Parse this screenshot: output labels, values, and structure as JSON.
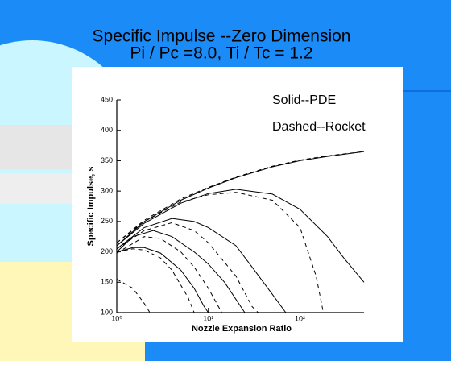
{
  "chart_data": {
    "type": "line",
    "title": "Specific Impulse --Zero Dimension",
    "subtitle": "Pi / Pc =8.0,  Ti / Tc = 1.2",
    "x_label": "Nozzle Expansion Ratio",
    "y_label": "Specific Impulse, s",
    "annotations": [
      "Solid--PDE",
      "Dashed--Rocket"
    ],
    "log_x": true,
    "xlim": [
      1,
      500
    ],
    "xticks": [
      {
        "value": 1,
        "label": "10⁰"
      },
      {
        "value": 10,
        "label": "10¹"
      },
      {
        "value": 100,
        "label": "10²"
      }
    ],
    "ylim": [
      100,
      450
    ],
    "yticks": [
      100,
      150,
      200,
      250,
      300,
      350,
      400,
      450
    ],
    "series": [
      {
        "color": "#000000",
        "dashed": false,
        "x": [
          1,
          2,
          5,
          10,
          20,
          50,
          100,
          200,
          500
        ],
        "values": [
          210,
          250,
          285,
          305,
          322,
          340,
          350,
          357,
          365
        ]
      },
      {
        "color": "#000000",
        "dashed": true,
        "x": [
          1,
          2,
          5,
          10,
          20,
          50,
          100,
          200,
          500
        ],
        "values": [
          215,
          252,
          287,
          306,
          323,
          341,
          351,
          358,
          365
        ]
      },
      {
        "color": "#000000",
        "dashed": false,
        "x": [
          1,
          2,
          5,
          10,
          20,
          50,
          100,
          200,
          300,
          500
        ],
        "values": [
          210,
          247,
          280,
          296,
          303,
          295,
          270,
          225,
          190,
          150
        ]
      },
      {
        "color": "#000000",
        "dashed": true,
        "x": [
          1,
          2,
          5,
          10,
          20,
          50,
          100,
          150,
          180
        ],
        "values": [
          215,
          250,
          282,
          294,
          298,
          285,
          240,
          160,
          100
        ]
      },
      {
        "color": "#000000",
        "dashed": false,
        "x": [
          1,
          2,
          4,
          7,
          10,
          20,
          30,
          50,
          70
        ],
        "values": [
          205,
          240,
          255,
          250,
          240,
          210,
          175,
          130,
          100
        ]
      },
      {
        "color": "#000000",
        "dashed": true,
        "x": [
          1,
          2,
          4,
          7,
          10,
          20,
          30,
          35
        ],
        "values": [
          205,
          235,
          248,
          235,
          215,
          160,
          110,
          100
        ]
      },
      {
        "color": "#000000",
        "dashed": false,
        "x": [
          1,
          1.5,
          2.5,
          4,
          7,
          10,
          15,
          25
        ],
        "values": [
          200,
          225,
          235,
          225,
          200,
          180,
          150,
          100
        ]
      },
      {
        "color": "#000000",
        "dashed": true,
        "x": [
          1,
          2,
          3,
          5,
          7,
          10,
          14
        ],
        "values": [
          198,
          225,
          222,
          200,
          175,
          140,
          100
        ]
      },
      {
        "color": "#000000",
        "dashed": false,
        "x": [
          1,
          1.5,
          2,
          3,
          5,
          7,
          9,
          10
        ],
        "values": [
          200,
          207,
          207,
          198,
          170,
          140,
          110,
          100
        ]
      },
      {
        "color": "#000000",
        "dashed": true,
        "x": [
          1,
          1.5,
          2,
          3,
          4,
          6,
          7
        ],
        "values": [
          200,
          205,
          203,
          190,
          170,
          125,
          100
        ]
      },
      {
        "color": "#000000",
        "dashed": true,
        "x": [
          1,
          1.5,
          2,
          2.3
        ],
        "values": [
          155,
          140,
          115,
          100
        ]
      }
    ]
  }
}
